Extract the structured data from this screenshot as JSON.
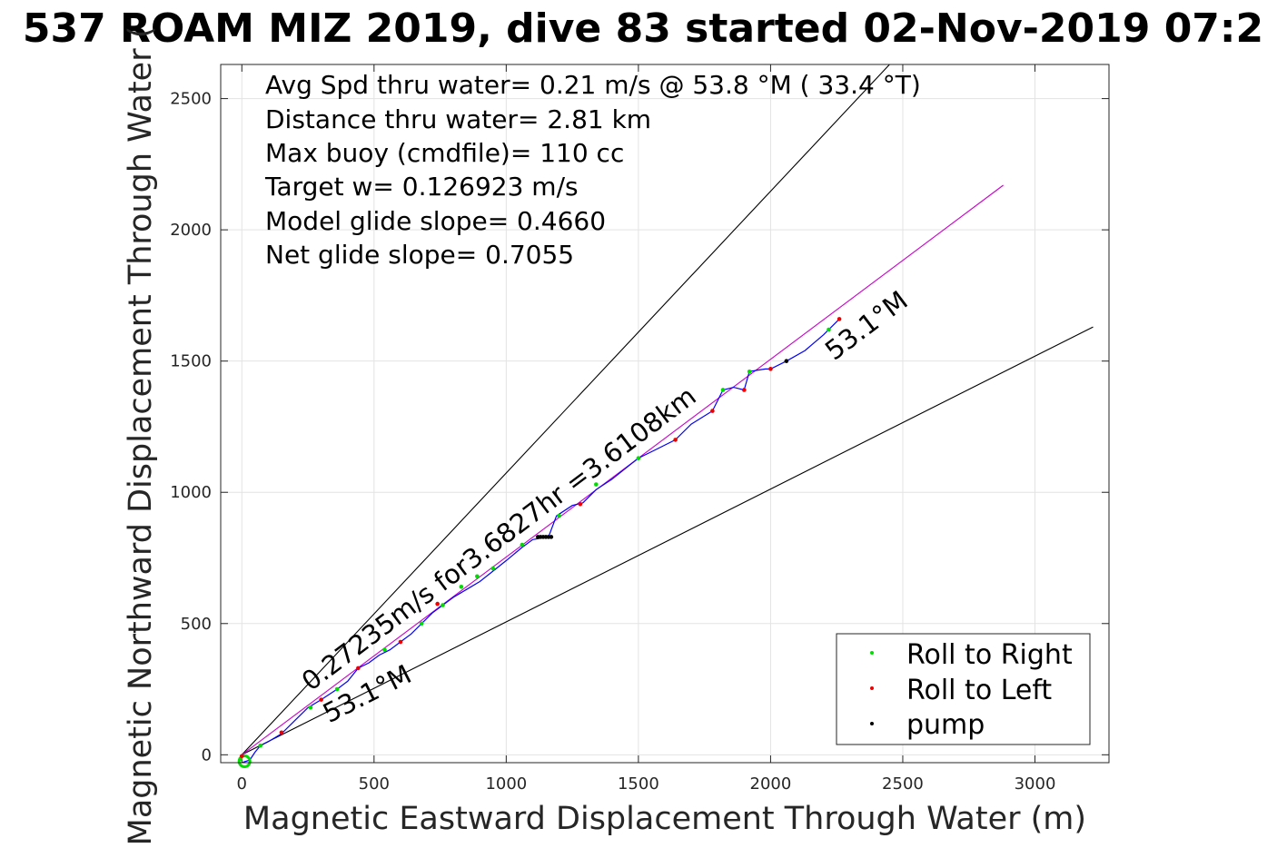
{
  "chart_data": {
    "type": "scatter",
    "title": "537 ROAM MIZ 2019, dive 83 started 02-Nov-2019 07:2",
    "xlabel": "Magnetic Eastward Displacement Through Water (m)",
    "ylabel": "Magnetic Northward Displacement Through Water (",
    "xlim": [
      -80,
      3280
    ],
    "ylim": [
      -30,
      2630
    ],
    "xticks": [
      0,
      500,
      1000,
      1500,
      2000,
      2500,
      3000
    ],
    "yticks": [
      0,
      500,
      1000,
      1500,
      2000,
      2500
    ],
    "grid": true,
    "info_lines": [
      "Avg Spd thru water=  0.21 m/s @  53.8 °M ( 33.4 °T)",
      "Distance thru water=  2.81 km",
      "Max buoy (cmdfile)= 110 cc",
      "Target w= 0.126923 m/s",
      "Model glide slope= 0.4660",
      "Net glide slope= 0.7055"
    ],
    "annotations": [
      {
        "text": "0.27235m/s for3.6827hr =3.6108km",
        "x": 260,
        "y": 240,
        "angle": 37
      },
      {
        "text": "53.1°M",
        "x": 330,
        "y": 120,
        "angle": 27
      },
      {
        "text": "53.1°M",
        "x": 2240,
        "y": 1500,
        "angle": 37
      }
    ],
    "legend": {
      "position": "bottom-right",
      "entries": [
        {
          "label": "Roll to Right",
          "color": "#00dd00"
        },
        {
          "label": "Roll to Left",
          "color": "#ee0000"
        },
        {
          "label": "pump",
          "color": "#000000"
        }
      ]
    },
    "reference_lines": [
      {
        "name": "bound-upper",
        "color": "#000000",
        "points": [
          [
            0,
            0
          ],
          [
            2450,
            2630
          ]
        ]
      },
      {
        "name": "bound-lower",
        "color": "#000000",
        "points": [
          [
            0,
            0
          ],
          [
            3220,
            1630
          ]
        ]
      },
      {
        "name": "net-track",
        "color": "#cc00cc",
        "points": [
          [
            0,
            0
          ],
          [
            2880,
            2170
          ]
        ]
      }
    ],
    "track": {
      "color": "#0000ff",
      "points": [
        [
          0,
          -30
        ],
        [
          30,
          -20
        ],
        [
          50,
          10
        ],
        [
          70,
          35
        ],
        [
          100,
          50
        ],
        [
          150,
          80
        ],
        [
          200,
          130
        ],
        [
          250,
          180
        ],
        [
          300,
          210
        ],
        [
          360,
          250
        ],
        [
          400,
          280
        ],
        [
          440,
          330
        ],
        [
          480,
          350
        ],
        [
          520,
          380
        ],
        [
          560,
          400
        ],
        [
          600,
          430
        ],
        [
          640,
          460
        ],
        [
          680,
          500
        ],
        [
          720,
          540
        ],
        [
          760,
          570
        ],
        [
          800,
          600
        ],
        [
          850,
          630
        ],
        [
          900,
          660
        ],
        [
          950,
          700
        ],
        [
          1000,
          740
        ],
        [
          1060,
          790
        ],
        [
          1100,
          820
        ],
        [
          1160,
          830
        ],
        [
          1190,
          910
        ],
        [
          1250,
          950
        ],
        [
          1290,
          960
        ],
        [
          1340,
          1010
        ],
        [
          1400,
          1050
        ],
        [
          1450,
          1090
        ],
        [
          1500,
          1130
        ],
        [
          1560,
          1160
        ],
        [
          1640,
          1200
        ],
        [
          1700,
          1260
        ],
        [
          1780,
          1310
        ],
        [
          1820,
          1390
        ],
        [
          1860,
          1400
        ],
        [
          1900,
          1390
        ],
        [
          1920,
          1460
        ],
        [
          1980,
          1470
        ],
        [
          2000,
          1470
        ],
        [
          2060,
          1500
        ],
        [
          2130,
          1540
        ],
        [
          2200,
          1600
        ],
        [
          2260,
          1660
        ]
      ]
    },
    "series": [
      {
        "name": "Roll to Right",
        "color": "#00dd00",
        "x": [
          -5,
          70,
          260,
          360,
          540,
          680,
          760,
          830,
          890,
          950,
          1060,
          1200,
          1340,
          1500,
          1820,
          1920,
          2220
        ],
        "y": [
          -15,
          35,
          180,
          250,
          400,
          500,
          570,
          640,
          680,
          710,
          800,
          910,
          1030,
          1130,
          1390,
          1460,
          1620
        ]
      },
      {
        "name": "Roll to Left",
        "color": "#ee0000",
        "x": [
          0,
          150,
          300,
          440,
          600,
          740,
          1280,
          1640,
          1780,
          1900,
          2000,
          2260
        ],
        "y": [
          -5,
          85,
          210,
          330,
          430,
          575,
          955,
          1200,
          1310,
          1390,
          1470,
          1660
        ]
      },
      {
        "name": "pump",
        "color": "#000000",
        "x": [
          1120,
          1130,
          1140,
          1150,
          1160,
          1170,
          2060
        ],
        "y": [
          830,
          830,
          830,
          830,
          830,
          830,
          1500
        ]
      }
    ],
    "start_marker": {
      "x": 10,
      "y": -25,
      "color": "#00dd00"
    }
  }
}
